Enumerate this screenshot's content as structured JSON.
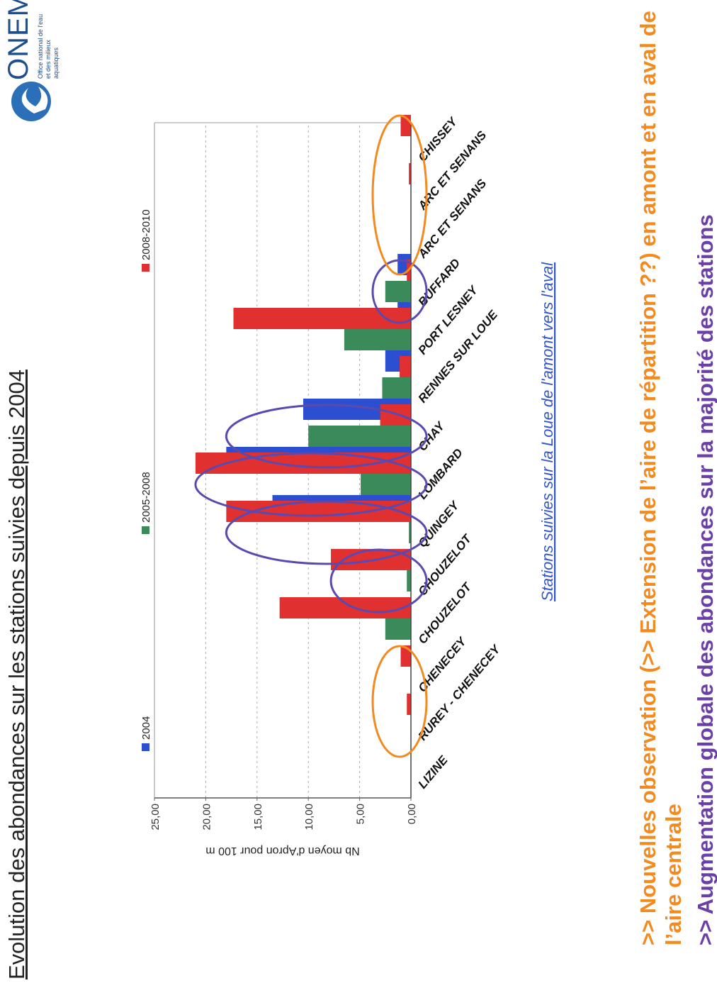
{
  "slide": {
    "title": "Evolution des abondances sur les stations suivies depuis 2004",
    "bullet1": ">> Nouvelles observation (>> Extension de l’aire de répartition ??) en amont et en aval de l’aire centrale",
    "bullet2": ">> Augmentation globale des abondances sur la majorité des stations"
  },
  "logo": {
    "name": "ONEMA",
    "subtitle": "Office national de l'eau et des milieux aquatiques",
    "icon": "onema-logo-icon"
  },
  "colors": {
    "series_2004": "#2b4fd0",
    "series_2005_2008": "#3a8a5a",
    "series_2008_2010": "#e03030",
    "highlight_purple": "#5a4ab0",
    "highlight_orange": "#f28a1f",
    "xlabel_color": "#3355cc"
  },
  "chart_data": {
    "type": "bar",
    "title": "",
    "xlabel": "Stations suivies sur la Loue de l'amont vers l'aval",
    "ylabel": "Nb moyen d'Apron pour 100 m",
    "ylim": [
      0,
      25
    ],
    "yticks": [
      "0,00",
      "5,00",
      "10,00",
      "15,00",
      "20,00",
      "25,00"
    ],
    "grid": true,
    "legend_position": "top",
    "categories": [
      "LIZINE",
      "RUREY - CHENECEY",
      "CHENECEY",
      "CHOUZELOT",
      "CHOUZELOT",
      "QUINGEY",
      "LOMBARD",
      "CHAY",
      "RENNES SUR LOUE",
      "PORT LESNEY",
      "BUFFARD",
      "ARC ET SENANS",
      "ARC ET SENANS",
      "CHISSEY"
    ],
    "series": [
      {
        "name": "2004",
        "values": [
          0,
          0,
          0,
          0,
          0,
          0,
          13.5,
          18,
          10.5,
          2.5,
          1.3,
          1.3,
          0,
          0
        ]
      },
      {
        "name": "2005-2008",
        "values": [
          0,
          0,
          0,
          2.5,
          0.4,
          0.2,
          4.9,
          10,
          2.8,
          6.5,
          2.5,
          0,
          0,
          0
        ]
      },
      {
        "name": "2008-2010",
        "values": [
          0,
          0.4,
          1,
          12.8,
          7.8,
          18,
          21,
          3,
          1.1,
          17.3,
          0.4,
          0,
          0.2,
          1
        ]
      }
    ],
    "highlights": [
      {
        "type": "ellipse",
        "color": "orange",
        "categories": [
          "RUREY - CHENECEY",
          "CHENECEY"
        ]
      },
      {
        "type": "ellipse",
        "color": "purple",
        "categories": [
          "CHOUZELOT"
        ]
      },
      {
        "type": "ellipse",
        "color": "purple",
        "categories": [
          "QUINGEY"
        ]
      },
      {
        "type": "ellipse",
        "color": "purple",
        "categories": [
          "LOMBARD"
        ]
      },
      {
        "type": "ellipse",
        "color": "purple",
        "categories": [
          "CHAY"
        ]
      },
      {
        "type": "ellipse",
        "color": "purple",
        "categories": [
          "BUFFARD"
        ]
      },
      {
        "type": "ellipse",
        "color": "orange",
        "categories": [
          "ARC ET SENANS",
          "CHISSEY"
        ]
      }
    ]
  }
}
